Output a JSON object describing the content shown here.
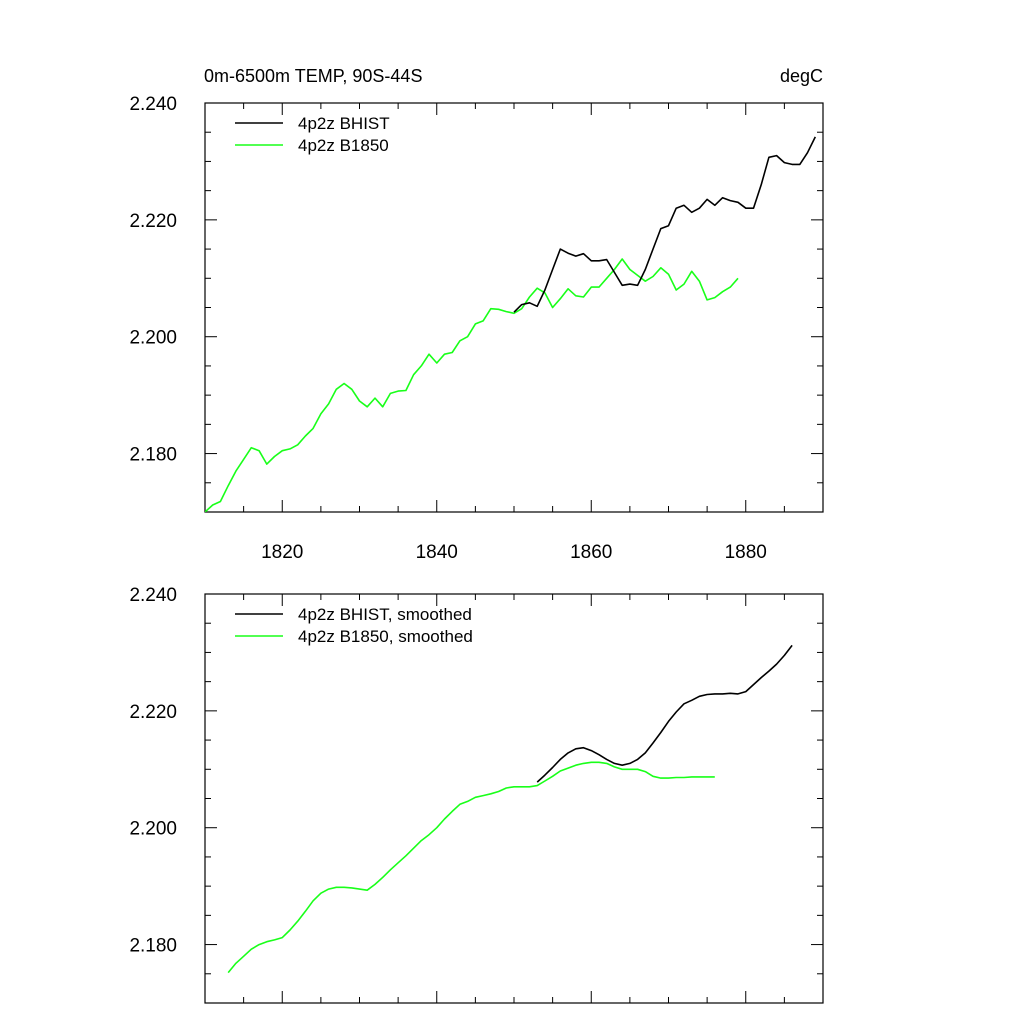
{
  "header": {
    "title": "0m-6500m TEMP, 90S-44S",
    "units": "degC"
  },
  "colors": {
    "bhist": "#000000",
    "b1850": "#19ff19",
    "axis": "#000000"
  },
  "chart_data": [
    {
      "type": "line",
      "panel": "top",
      "title": "0m-6500m TEMP, 90S-44S",
      "units": "degC",
      "xlim": [
        1810,
        1890
      ],
      "ylim": [
        2.17,
        2.24
      ],
      "x_ticks": [
        1820,
        1840,
        1860,
        1880
      ],
      "x_tick_labels": [
        "1820",
        "1840",
        "1860",
        "1880"
      ],
      "y_ticks": [
        2.18,
        2.2,
        2.22,
        2.24
      ],
      "y_tick_labels": [
        "2.180",
        "2.200",
        "2.220",
        "2.240"
      ],
      "legend_position": "top-left",
      "series": [
        {
          "name": "4p2z BHIST",
          "color": "#000000",
          "x": [
            1850,
            1851,
            1852,
            1853,
            1854,
            1855,
            1856,
            1857,
            1858,
            1859,
            1860,
            1861,
            1862,
            1863,
            1864,
            1865,
            1866,
            1867,
            1868,
            1869,
            1870,
            1871,
            1872,
            1873,
            1874,
            1875,
            1876,
            1877,
            1878,
            1879,
            1880,
            1881,
            1882,
            1883,
            1884,
            1885,
            1886,
            1887,
            1888,
            1889
          ],
          "values": [
            2.2042,
            2.2055,
            2.2058,
            2.2052,
            2.208,
            2.2115,
            2.215,
            2.2143,
            2.2138,
            2.2142,
            2.213,
            2.213,
            2.2132,
            2.211,
            2.2088,
            2.209,
            2.2088,
            2.2115,
            2.215,
            2.2185,
            2.219,
            2.222,
            2.2225,
            2.2213,
            2.222,
            2.2235,
            2.2225,
            2.2238,
            2.2233,
            2.223,
            2.222,
            2.222,
            2.226,
            2.2307,
            2.231,
            2.2298,
            2.2295,
            2.2295,
            2.2315,
            2.2342
          ]
        },
        {
          "name": "4p2z B1850",
          "color": "#19ff19",
          "x": [
            1810,
            1811,
            1812,
            1813,
            1814,
            1815,
            1816,
            1817,
            1818,
            1819,
            1820,
            1821,
            1822,
            1823,
            1824,
            1825,
            1826,
            1827,
            1828,
            1829,
            1830,
            1831,
            1832,
            1833,
            1834,
            1835,
            1836,
            1837,
            1838,
            1839,
            1840,
            1841,
            1842,
            1843,
            1844,
            1845,
            1846,
            1847,
            1848,
            1849,
            1850,
            1851,
            1852,
            1853,
            1854,
            1855,
            1856,
            1857,
            1858,
            1859,
            1860,
            1861,
            1862,
            1863,
            1864,
            1865,
            1866,
            1867,
            1868,
            1869,
            1870,
            1871,
            1872,
            1873,
            1874,
            1875,
            1876,
            1877,
            1878,
            1879
          ],
          "values": [
            2.17,
            2.1712,
            2.1718,
            2.1745,
            2.177,
            2.179,
            2.181,
            2.1805,
            2.1782,
            2.1795,
            2.1805,
            2.1808,
            2.1815,
            2.183,
            2.1843,
            2.1868,
            2.1885,
            2.191,
            2.192,
            2.191,
            2.189,
            2.188,
            2.1895,
            2.188,
            2.1903,
            2.1907,
            2.1908,
            2.1935,
            2.195,
            2.197,
            2.1955,
            2.197,
            2.1973,
            2.1993,
            2.2,
            2.2022,
            2.2027,
            2.2048,
            2.2047,
            2.2043,
            2.204,
            2.2048,
            2.2068,
            2.2083,
            2.2075,
            2.205,
            2.2065,
            2.2082,
            2.207,
            2.2068,
            2.2085,
            2.2085,
            2.21,
            2.2115,
            2.2133,
            2.2115,
            2.2105,
            2.2095,
            2.2103,
            2.2118,
            2.2107,
            2.208,
            2.209,
            2.2112,
            2.2095,
            2.2063,
            2.2067,
            2.2077,
            2.2085,
            2.21
          ]
        }
      ]
    },
    {
      "type": "line",
      "panel": "bottom",
      "xlim": [
        1810,
        1890
      ],
      "ylim": [
        2.17,
        2.24
      ],
      "x_ticks": [
        1820,
        1840,
        1860,
        1880
      ],
      "y_ticks": [
        2.18,
        2.2,
        2.22,
        2.24
      ],
      "y_tick_labels": [
        "2.180",
        "2.200",
        "2.220",
        "2.240"
      ],
      "legend_position": "top-left",
      "series": [
        {
          "name": "4p2z BHIST, smoothed",
          "color": "#000000",
          "x": [
            1853,
            1854,
            1855,
            1856,
            1857,
            1858,
            1859,
            1860,
            1861,
            1862,
            1863,
            1864,
            1865,
            1866,
            1867,
            1868,
            1869,
            1870,
            1871,
            1872,
            1873,
            1874,
            1875,
            1876,
            1877,
            1878,
            1879,
            1880,
            1881,
            1882,
            1883,
            1884,
            1885,
            1886
          ],
          "values": [
            2.2078,
            2.209,
            2.2103,
            2.2117,
            2.2128,
            2.2135,
            2.2137,
            2.2132,
            2.2125,
            2.2117,
            2.211,
            2.2107,
            2.211,
            2.2117,
            2.2128,
            2.2145,
            2.2163,
            2.2182,
            2.2198,
            2.2212,
            2.2218,
            2.2225,
            2.2228,
            2.2229,
            2.2229,
            2.223,
            2.2229,
            2.2233,
            2.2245,
            2.2257,
            2.2268,
            2.228,
            2.2295,
            2.2312
          ]
        },
        {
          "name": "4p2z B1850, smoothed",
          "color": "#19ff19",
          "x": [
            1813,
            1814,
            1815,
            1816,
            1817,
            1818,
            1819,
            1820,
            1821,
            1822,
            1823,
            1824,
            1825,
            1826,
            1827,
            1828,
            1829,
            1830,
            1831,
            1832,
            1833,
            1834,
            1835,
            1836,
            1837,
            1838,
            1839,
            1840,
            1841,
            1842,
            1843,
            1844,
            1845,
            1846,
            1847,
            1848,
            1849,
            1850,
            1851,
            1852,
            1853,
            1854,
            1855,
            1856,
            1857,
            1858,
            1859,
            1860,
            1861,
            1862,
            1863,
            1864,
            1865,
            1866,
            1867,
            1868,
            1869,
            1870,
            1871,
            1872,
            1873,
            1874,
            1875,
            1876
          ],
          "values": [
            2.1752,
            2.1768,
            2.178,
            2.1792,
            2.18,
            2.1805,
            2.1808,
            2.1812,
            2.1825,
            2.184,
            2.1857,
            2.1875,
            2.1888,
            2.1895,
            2.1898,
            2.1898,
            2.1897,
            2.1895,
            2.1893,
            2.1903,
            2.1915,
            2.1928,
            2.194,
            2.1952,
            2.1965,
            2.1978,
            2.1988,
            2.2,
            2.2015,
            2.2028,
            2.204,
            2.2045,
            2.2052,
            2.2055,
            2.2058,
            2.2062,
            2.2068,
            2.207,
            2.207,
            2.207,
            2.2072,
            2.208,
            2.2088,
            2.2097,
            2.2102,
            2.2107,
            2.211,
            2.2112,
            2.2112,
            2.211,
            2.2104,
            2.21,
            2.21,
            2.21,
            2.2096,
            2.2088,
            2.2085,
            2.2085,
            2.2086,
            2.2086,
            2.2087,
            2.2087,
            2.2087,
            2.2087
          ]
        }
      ]
    }
  ]
}
